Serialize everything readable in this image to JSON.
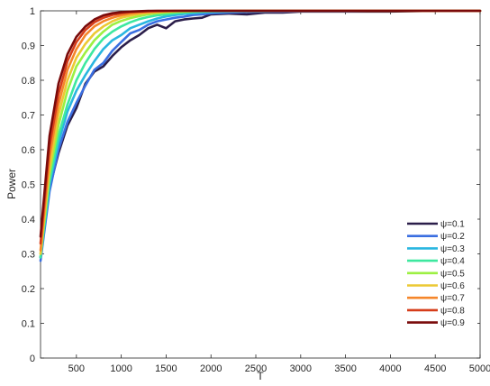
{
  "chart_data": {
    "type": "line",
    "title": "",
    "xlabel": "T",
    "ylabel": "Power",
    "xlim": [
      100,
      5000
    ],
    "ylim": [
      0,
      1
    ],
    "xticks": [
      500,
      1000,
      1500,
      2000,
      2500,
      3000,
      3500,
      4000,
      4500,
      5000
    ],
    "yticks": [
      0,
      0.1,
      0.2,
      0.3,
      0.4,
      0.5,
      0.6,
      0.7,
      0.8,
      0.9,
      1
    ],
    "xtick_labels": [
      "500",
      "1000",
      "1500",
      "2000",
      "2500",
      "3000",
      "3500",
      "4000",
      "4500",
      "5000"
    ],
    "ytick_labels": [
      "0",
      "0.1",
      "0.2",
      "0.3",
      "0.4",
      "0.5",
      "0.6",
      "0.7",
      "0.8",
      "0.9",
      "1"
    ],
    "grid": false,
    "legend_position": "bottom-right",
    "x": [
      100,
      200,
      300,
      400,
      500,
      600,
      700,
      800,
      900,
      1000,
      1100,
      1200,
      1300,
      1400,
      1500,
      1600,
      1700,
      1800,
      1900,
      2000,
      2200,
      2400,
      2600,
      2800,
      3000,
      3500,
      4000,
      4500,
      5000
    ],
    "series": [
      {
        "name": "ψ=0.1",
        "color": "#2b1e4a",
        "values": [
          0.29,
          0.49,
          0.59,
          0.67,
          0.72,
          0.79,
          0.825,
          0.84,
          0.87,
          0.895,
          0.915,
          0.93,
          0.95,
          0.96,
          0.95,
          0.97,
          0.975,
          0.978,
          0.98,
          0.99,
          0.992,
          0.99,
          0.995,
          0.995,
          0.998,
          0.998,
          0.998,
          1.0,
          1.0
        ]
      },
      {
        "name": "ψ=0.2",
        "color": "#3a6ee0",
        "values": [
          0.28,
          0.48,
          0.6,
          0.68,
          0.735,
          0.785,
          0.83,
          0.85,
          0.885,
          0.91,
          0.935,
          0.945,
          0.96,
          0.97,
          0.975,
          0.98,
          0.983,
          0.988,
          0.99,
          0.993,
          0.995,
          0.997,
          0.998,
          0.998,
          0.999,
          0.999,
          1.0,
          1.0,
          1.0
        ]
      },
      {
        "name": "ψ=0.3",
        "color": "#29b6e0",
        "values": [
          0.29,
          0.5,
          0.62,
          0.71,
          0.77,
          0.815,
          0.855,
          0.89,
          0.915,
          0.93,
          0.95,
          0.96,
          0.97,
          0.978,
          0.984,
          0.988,
          0.991,
          0.993,
          0.995,
          0.996,
          0.998,
          0.999,
          0.999,
          1.0,
          1.0,
          1.0,
          1.0,
          1.0,
          1.0
        ]
      },
      {
        "name": "ψ=0.4",
        "color": "#3de89f",
        "values": [
          0.29,
          0.51,
          0.64,
          0.73,
          0.8,
          0.85,
          0.89,
          0.92,
          0.94,
          0.955,
          0.967,
          0.976,
          0.982,
          0.987,
          0.99,
          0.993,
          0.995,
          0.997,
          0.998,
          0.999,
          1.0,
          1.0,
          1.0,
          1.0,
          1.0,
          1.0,
          1.0,
          1.0,
          1.0
        ]
      },
      {
        "name": "ψ=0.5",
        "color": "#9cf042",
        "values": [
          0.3,
          0.53,
          0.67,
          0.77,
          0.84,
          0.88,
          0.915,
          0.94,
          0.96,
          0.971,
          0.979,
          0.985,
          0.99,
          0.993,
          0.995,
          0.997,
          0.998,
          0.999,
          1.0,
          1.0,
          1.0,
          1.0,
          1.0,
          1.0,
          1.0,
          1.0,
          1.0,
          1.0,
          1.0
        ]
      },
      {
        "name": "ψ=0.6",
        "color": "#ecc934",
        "values": [
          0.3,
          0.55,
          0.7,
          0.8,
          0.865,
          0.905,
          0.935,
          0.955,
          0.97,
          0.98,
          0.986,
          0.991,
          0.994,
          0.996,
          0.998,
          0.999,
          1.0,
          1.0,
          1.0,
          1.0,
          1.0,
          1.0,
          1.0,
          1.0,
          1.0,
          1.0,
          1.0,
          1.0,
          1.0
        ]
      },
      {
        "name": "ψ=0.7",
        "color": "#f5862a",
        "values": [
          0.31,
          0.58,
          0.73,
          0.83,
          0.89,
          0.93,
          0.955,
          0.97,
          0.98,
          0.987,
          0.992,
          0.995,
          0.997,
          0.998,
          0.999,
          1.0,
          1.0,
          1.0,
          1.0,
          1.0,
          1.0,
          1.0,
          1.0,
          1.0,
          1.0,
          1.0,
          1.0,
          1.0,
          1.0
        ]
      },
      {
        "name": "ψ=0.8",
        "color": "#d63d1a",
        "values": [
          0.33,
          0.61,
          0.76,
          0.855,
          0.91,
          0.945,
          0.967,
          0.98,
          0.988,
          0.993,
          0.996,
          0.998,
          0.999,
          1.0,
          1.0,
          1.0,
          1.0,
          1.0,
          1.0,
          1.0,
          1.0,
          1.0,
          1.0,
          1.0,
          1.0,
          1.0,
          1.0,
          1.0,
          1.0
        ]
      },
      {
        "name": "ψ=0.9",
        "color": "#7a0a0a",
        "values": [
          0.35,
          0.64,
          0.79,
          0.875,
          0.925,
          0.955,
          0.975,
          0.987,
          0.993,
          0.996,
          0.998,
          0.999,
          1.0,
          1.0,
          1.0,
          1.0,
          1.0,
          1.0,
          1.0,
          1.0,
          1.0,
          1.0,
          1.0,
          1.0,
          1.0,
          1.0,
          1.0,
          1.0,
          1.0
        ]
      }
    ]
  }
}
